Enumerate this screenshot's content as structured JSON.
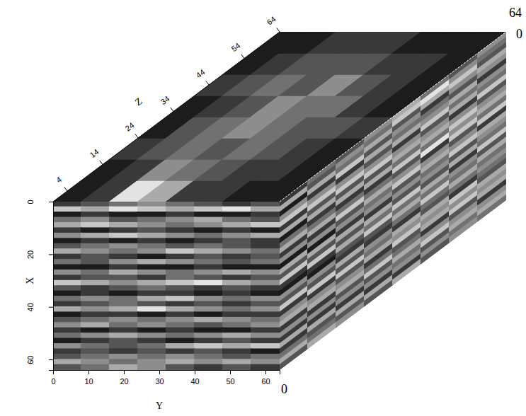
{
  "chart_data": {
    "type": "heatmap_cube",
    "xlabel": "X",
    "ylabel": "Y",
    "zlabel": "Z",
    "xlim": [
      0,
      64
    ],
    "ylim": [
      0,
      64
    ],
    "zlim": [
      0,
      64
    ],
    "xticks": [
      0,
      20,
      40,
      60
    ],
    "yticks": [
      0,
      10,
      20,
      30,
      40,
      50,
      60
    ],
    "zticks": [
      4,
      14,
      24,
      34,
      44,
      54,
      64
    ],
    "clim": [
      0,
      9
    ],
    "annotations": [
      "64",
      "0",
      "0"
    ],
    "front": {
      "cells": [
        [
          2,
          3,
          4,
          5,
          4,
          3,
          2,
          3
        ],
        [
          7,
          6,
          8,
          7,
          6,
          7,
          8,
          6
        ],
        [
          1,
          2,
          1,
          1,
          2,
          1,
          1,
          2
        ],
        [
          4,
          5,
          3,
          4,
          5,
          6,
          4,
          3
        ],
        [
          6,
          7,
          6,
          5,
          4,
          5,
          6,
          7
        ],
        [
          2,
          1,
          2,
          3,
          2,
          1,
          2,
          1
        ],
        [
          5,
          6,
          7,
          6,
          5,
          4,
          5,
          6
        ],
        [
          1,
          2,
          1,
          2,
          1,
          2,
          3,
          2
        ],
        [
          3,
          4,
          5,
          4,
          3,
          4,
          3,
          2
        ],
        [
          6,
          5,
          4,
          5,
          7,
          6,
          5,
          4
        ],
        [
          2,
          3,
          2,
          1,
          2,
          3,
          2,
          3
        ],
        [
          4,
          3,
          5,
          6,
          5,
          4,
          3,
          4
        ],
        [
          1,
          1,
          2,
          1,
          1,
          2,
          1,
          1
        ],
        [
          5,
          4,
          6,
          5,
          4,
          5,
          6,
          5
        ],
        [
          2,
          3,
          3,
          2,
          4,
          3,
          2,
          3
        ],
        [
          7,
          6,
          5,
          6,
          7,
          8,
          6,
          5
        ],
        [
          3,
          2,
          3,
          4,
          3,
          2,
          3,
          2
        ],
        [
          1,
          2,
          1,
          2,
          2,
          1,
          2,
          1
        ],
        [
          4,
          5,
          4,
          6,
          7,
          5,
          4,
          5
        ],
        [
          2,
          3,
          4,
          3,
          2,
          3,
          2,
          3
        ],
        [
          6,
          5,
          6,
          8,
          6,
          5,
          4,
          5
        ],
        [
          1,
          2,
          2,
          1,
          2,
          1,
          2,
          2
        ],
        [
          3,
          4,
          5,
          4,
          5,
          6,
          5,
          4
        ],
        [
          5,
          6,
          4,
          5,
          4,
          3,
          4,
          5
        ],
        [
          2,
          1,
          2,
          1,
          2,
          1,
          1,
          2
        ],
        [
          4,
          5,
          6,
          5,
          4,
          5,
          6,
          5
        ],
        [
          1,
          2,
          3,
          2,
          1,
          2,
          3,
          2
        ],
        [
          5,
          4,
          3,
          4,
          6,
          7,
          6,
          7
        ],
        [
          2,
          3,
          2,
          3,
          2,
          3,
          2,
          1
        ],
        [
          3,
          4,
          5,
          4,
          5,
          4,
          3,
          4
        ],
        [
          6,
          5,
          4,
          5,
          6,
          5,
          6,
          5
        ],
        [
          3,
          4,
          6,
          5,
          3,
          2,
          3,
          2
        ]
      ]
    },
    "top": {
      "cells": [
        [
          1,
          2,
          8,
          6,
          2,
          2,
          1,
          1
        ],
        [
          1,
          2,
          5,
          4,
          3,
          2,
          2,
          1
        ],
        [
          2,
          3,
          4,
          3,
          4,
          3,
          2,
          1
        ],
        [
          1,
          3,
          4,
          5,
          4,
          3,
          3,
          2
        ],
        [
          1,
          2,
          3,
          5,
          4,
          4,
          2,
          1
        ],
        [
          2,
          3,
          4,
          3,
          5,
          3,
          2,
          1
        ],
        [
          1,
          2,
          3,
          3,
          3,
          2,
          2,
          1
        ],
        [
          1,
          1,
          2,
          2,
          2,
          1,
          1,
          1
        ]
      ]
    },
    "side": {
      "cells": [
        [
          2,
          4,
          3,
          5,
          6,
          4,
          3,
          5
        ],
        [
          6,
          3,
          5,
          4,
          7,
          8,
          5,
          4
        ],
        [
          1,
          6,
          4,
          6,
          3,
          6,
          7,
          3
        ],
        [
          5,
          2,
          7,
          3,
          5,
          2,
          5,
          6
        ],
        [
          7,
          5,
          2,
          6,
          4,
          4,
          3,
          5
        ],
        [
          2,
          7,
          5,
          3,
          6,
          5,
          6,
          2
        ],
        [
          6,
          3,
          7,
          5,
          2,
          7,
          4,
          5
        ],
        [
          1,
          6,
          3,
          7,
          5,
          3,
          6,
          4
        ],
        [
          4,
          2,
          6,
          3,
          6,
          5,
          2,
          7
        ],
        [
          6,
          4,
          2,
          6,
          4,
          6,
          5,
          3
        ],
        [
          2,
          6,
          4,
          2,
          7,
          4,
          7,
          5
        ],
        [
          5,
          2,
          7,
          4,
          3,
          8,
          5,
          6
        ],
        [
          1,
          5,
          3,
          6,
          5,
          2,
          7,
          4
        ],
        [
          6,
          1,
          5,
          4,
          7,
          5,
          3,
          7
        ],
        [
          3,
          6,
          2,
          5,
          3,
          6,
          5,
          2
        ],
        [
          7,
          3,
          6,
          2,
          5,
          4,
          7,
          6
        ],
        [
          2,
          7,
          3,
          6,
          3,
          5,
          3,
          5
        ],
        [
          1,
          2,
          6,
          4,
          7,
          3,
          6,
          4
        ],
        [
          5,
          1,
          3,
          7,
          4,
          6,
          2,
          7
        ],
        [
          3,
          5,
          2,
          3,
          6,
          4,
          5,
          3
        ],
        [
          7,
          3,
          6,
          2,
          4,
          7,
          4,
          6
        ],
        [
          2,
          7,
          3,
          5,
          2,
          4,
          6,
          4
        ],
        [
          5,
          2,
          7,
          4,
          6,
          3,
          4,
          5
        ],
        [
          6,
          5,
          3,
          6,
          5,
          6,
          2,
          4
        ],
        [
          2,
          6,
          5,
          2,
          7,
          5,
          7,
          3
        ],
        [
          5,
          2,
          6,
          4,
          3,
          6,
          5,
          6
        ],
        [
          2,
          5,
          3,
          7,
          4,
          2,
          7,
          5
        ],
        [
          6,
          2,
          5,
          3,
          6,
          5,
          3,
          6
        ],
        [
          2,
          6,
          2,
          5,
          4,
          7,
          5,
          2
        ],
        [
          4,
          3,
          6,
          2,
          5,
          3,
          6,
          5
        ],
        [
          6,
          4,
          3,
          6,
          2,
          5,
          4,
          6
        ],
        [
          3,
          6,
          5,
          3,
          6,
          3,
          5,
          4
        ]
      ]
    }
  }
}
